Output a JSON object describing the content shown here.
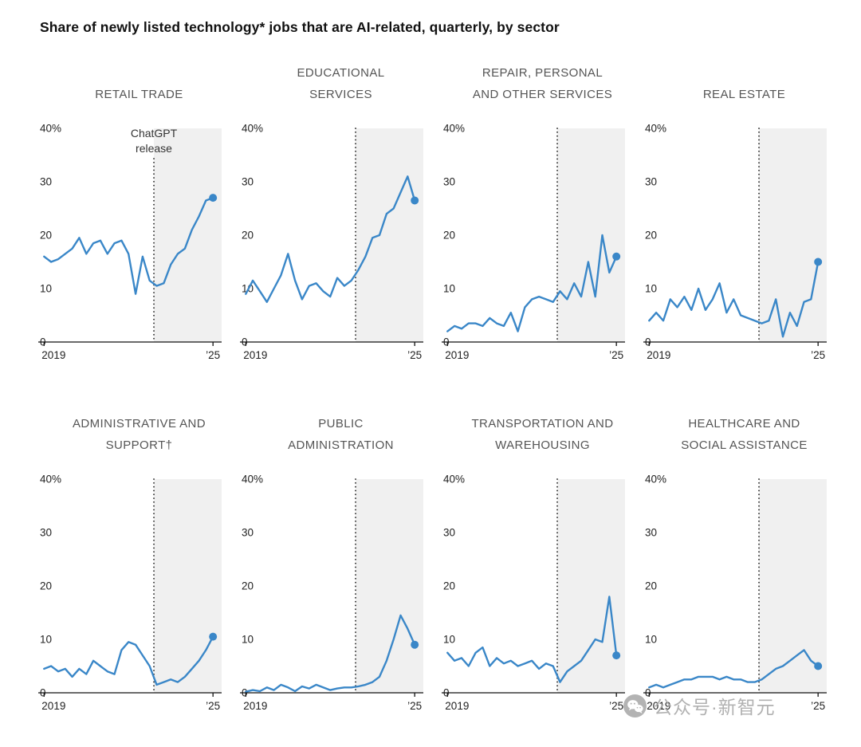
{
  "page": {
    "title": "Share of newly listed technology* jobs that are AI-related, quarterly, by sector",
    "watermark": {
      "icon": "wechat-icon",
      "text": "公众号·新智元"
    }
  },
  "chart_data": {
    "type": "line",
    "layout": "small-multiples-4x2",
    "title": "Share of newly listed technology* jobs that are AI-related, quarterly, by sector",
    "x_start": 2019,
    "x_step_years": 0.25,
    "x_end": 2025,
    "x_tick_labels": [
      "2019",
      "’25"
    ],
    "y_ticks": [
      0,
      10,
      20,
      30,
      40
    ],
    "y_top_label": "40%",
    "ylim": [
      0,
      40
    ],
    "grid": "off",
    "event_line_x": 2022.9,
    "annotation": {
      "text": "ChatGPT\nrelease",
      "x": 2022.9,
      "chart_index": 0
    },
    "line_color": "#3a87c8",
    "shade_color": "#f0f0f0",
    "series": [
      {
        "name": "Retail trade",
        "title": "RETAIL TRADE",
        "values": [
          16,
          15,
          15.5,
          16.5,
          17.5,
          19.5,
          16.5,
          18.5,
          19,
          16.5,
          18.5,
          19,
          16.5,
          9,
          16,
          11.5,
          10.5,
          11,
          14.5,
          16.5,
          17.5,
          21,
          23.5,
          26.5,
          27
        ]
      },
      {
        "name": "Educational services",
        "title": "EDUCATIONAL\nSERVICES",
        "values": [
          9,
          11.5,
          9.5,
          7.5,
          10,
          12.5,
          16.5,
          11.5,
          8,
          10.5,
          11,
          9.5,
          8.5,
          12,
          10.5,
          11.5,
          13.5,
          16,
          19.5,
          20,
          24,
          25,
          28,
          31,
          26.5
        ]
      },
      {
        "name": "Repair, personal and other services",
        "title": "REPAIR, PERSONAL\nAND OTHER SERVICES",
        "values": [
          2,
          3,
          2.5,
          3.5,
          3.5,
          3,
          4.5,
          3.5,
          3,
          5.5,
          2,
          6.5,
          8,
          8.5,
          8,
          7.5,
          9.5,
          8,
          11,
          8.5,
          15,
          8.5,
          20,
          13,
          16
        ]
      },
      {
        "name": "Real estate",
        "title": "REAL ESTATE",
        "values": [
          4,
          5.5,
          4,
          8,
          6.5,
          8.5,
          6,
          10,
          6,
          8,
          11,
          5.5,
          8,
          5,
          4.5,
          4,
          3.5,
          4,
          8,
          1,
          5.5,
          3,
          7.5,
          8,
          15
        ]
      },
      {
        "name": "Administrative and support",
        "title": "ADMINISTRATIVE AND\nSUPPORT†",
        "values": [
          4.5,
          5,
          4,
          4.5,
          3,
          4.5,
          3.5,
          6,
          5,
          4,
          3.5,
          8,
          9.5,
          9,
          7,
          5,
          1.5,
          2,
          2.5,
          2,
          3,
          4.5,
          6,
          8,
          10.5
        ]
      },
      {
        "name": "Public administration",
        "title": "PUBLIC\nADMINISTRATION",
        "values": [
          0.2,
          0.5,
          0.3,
          1,
          0.5,
          1.5,
          1,
          0.3,
          1.2,
          0.8,
          1.5,
          1,
          0.5,
          0.8,
          1,
          1,
          1.2,
          1.5,
          2,
          3,
          6,
          10,
          14.5,
          12,
          9
        ]
      },
      {
        "name": "Transportation and warehousing",
        "title": "TRANSPORTATION AND\nWAREHOUSING",
        "values": [
          7.5,
          6,
          6.5,
          5,
          7.5,
          8.5,
          5,
          6.5,
          5.5,
          6,
          5,
          5.5,
          6,
          4.5,
          5.5,
          5,
          2,
          4,
          5,
          6,
          8,
          10,
          9.5,
          18,
          7
        ]
      },
      {
        "name": "Healthcare and social assistance",
        "title": "HEALTHCARE AND\nSOCIAL ASSISTANCE",
        "values": [
          1,
          1.5,
          1,
          1.5,
          2,
          2.5,
          2.5,
          3,
          3,
          3,
          2.5,
          3,
          2.5,
          2.5,
          2,
          2,
          2.5,
          3.5,
          4.5,
          5,
          6,
          7,
          8,
          6,
          5
        ]
      }
    ]
  }
}
